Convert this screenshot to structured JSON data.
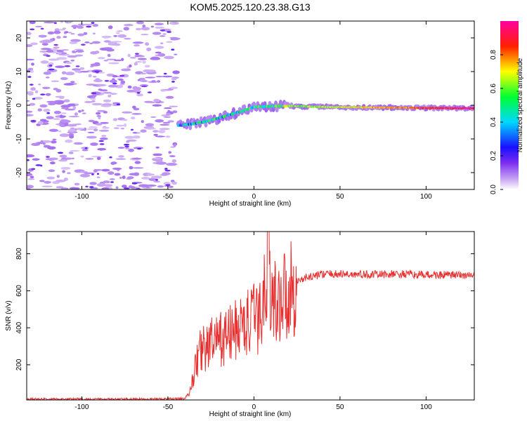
{
  "title": "KOM5.2025.120.23.38.G13",
  "chart_data": [
    {
      "type": "heatmap",
      "xlabel": "Height of straight line (km)",
      "ylabel": "Frequency (Hz)",
      "xlim": [
        -132,
        128
      ],
      "ylim": [
        -25,
        25
      ],
      "x_ticks": [
        -100,
        -50,
        0,
        50,
        100
      ],
      "y_ticks": [
        -20,
        -10,
        0,
        10,
        20
      ],
      "grid": false,
      "colorbar": {
        "label": "Normalized spectral amplitude",
        "range": [
          0,
          1
        ],
        "ticks": [
          0.0,
          0.2,
          0.4,
          0.6,
          0.8
        ],
        "colors": [
          "#ffffff",
          "#c9a6f2",
          "#7a2cf0",
          "#1a10ff",
          "#00d8ff",
          "#00ff30",
          "#ffff00",
          "#ff2000",
          "#ff00a0"
        ]
      },
      "ridge": {
        "x": [
          -44,
          -35,
          -25,
          -15,
          -5,
          0,
          10,
          20,
          40,
          60,
          80,
          100,
          128
        ],
        "y": [
          -6,
          -5.5,
          -4.5,
          -3,
          -1.5,
          -0.5,
          -0.3,
          -0.2,
          -0.5,
          -0.6,
          -0.7,
          -0.8,
          -0.9
        ],
        "amplitude": [
          0.3,
          0.4,
          0.45,
          0.45,
          0.45,
          0.5,
          0.55,
          0.6,
          0.65,
          0.7,
          0.75,
          0.85,
          0.95
        ]
      }
    },
    {
      "type": "line",
      "xlabel": "Height of straight line (km)",
      "ylabel": "SNR (v/v)",
      "xlim": [
        -132,
        128
      ],
      "ylim": [
        10,
        920
      ],
      "x_ticks": [
        -100,
        -50,
        0,
        50,
        100
      ],
      "y_ticks": [
        200,
        400,
        600,
        800
      ],
      "grid": false,
      "series": [
        {
          "color": "#e83030",
          "x": [
            -132,
            -120,
            -100,
            -80,
            -60,
            -45,
            -40,
            -37,
            -35,
            -32,
            -30,
            -28,
            -25,
            -20,
            -15,
            -10,
            -5,
            0,
            5,
            8,
            10,
            15,
            20,
            25,
            30,
            40,
            50,
            60,
            70,
            80,
            90,
            100,
            110,
            120,
            128
          ],
          "y": [
            15,
            14,
            15,
            14,
            15,
            16,
            18,
            60,
            150,
            260,
            300,
            280,
            320,
            330,
            360,
            390,
            420,
            440,
            470,
            880,
            520,
            560,
            600,
            650,
            670,
            690,
            690,
            688,
            687,
            690,
            688,
            686,
            685,
            684,
            684
          ]
        }
      ]
    }
  ]
}
